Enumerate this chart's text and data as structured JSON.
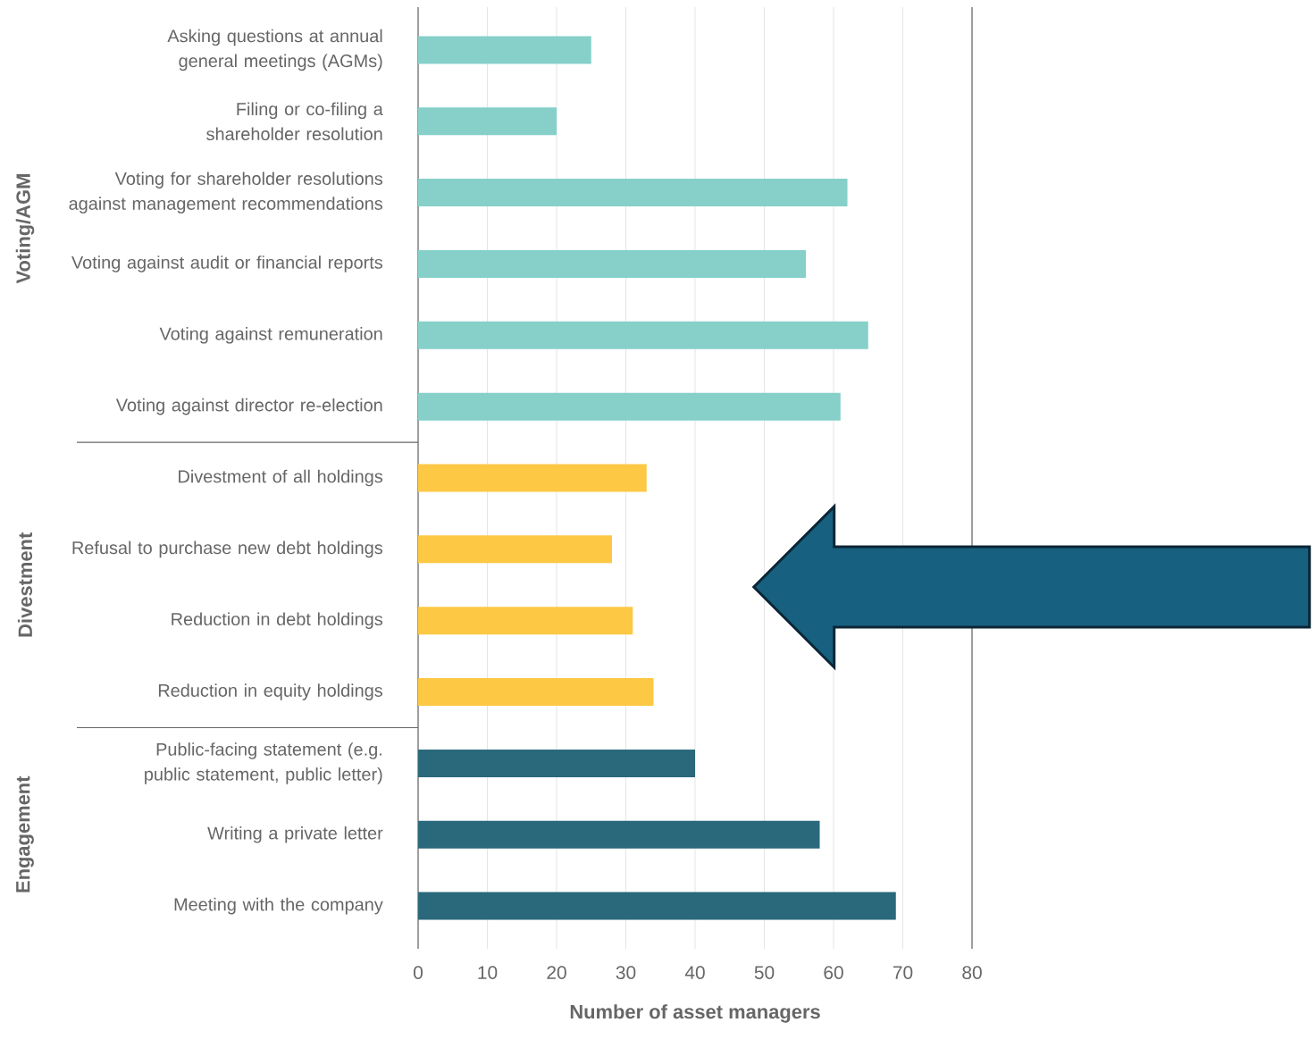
{
  "chart_data": {
    "type": "bar",
    "orientation": "horizontal",
    "categories": [
      "Asking questions at annual general meetings (AGMs)",
      "Filing or co-filing a shareholder resolution",
      "Voting for shareholder resolutions against management recommendations",
      "Voting against audit or financial reports",
      "Voting against remuneration",
      "Voting against director re-election",
      "Divestment of all holdings",
      "Refusal to purchase new debt holdings",
      "Reduction in debt holdings",
      "Reduction in equity holdings",
      "Public-facing statement (e.g. public statement, public letter)",
      "Writing a private letter",
      "Meeting with the company"
    ],
    "values": [
      25,
      20,
      62,
      56,
      65,
      61,
      33,
      28,
      31,
      34,
      40,
      58,
      69
    ],
    "colors": [
      "#86d0c9",
      "#86d0c9",
      "#86d0c9",
      "#86d0c9",
      "#86d0c9",
      "#86d0c9",
      "#fdc844",
      "#fdc844",
      "#fdc844",
      "#fdc844",
      "#2a687c",
      "#2a687c",
      "#2a687c"
    ],
    "xlim": [
      0,
      80
    ],
    "xticks": [
      0,
      10,
      20,
      30,
      40,
      50,
      60,
      70,
      80
    ],
    "xlabel": "Number of asset managers",
    "grid": "x",
    "annotations": [
      "Voting/AGM",
      "Divestment",
      "Engagement"
    ]
  }
}
